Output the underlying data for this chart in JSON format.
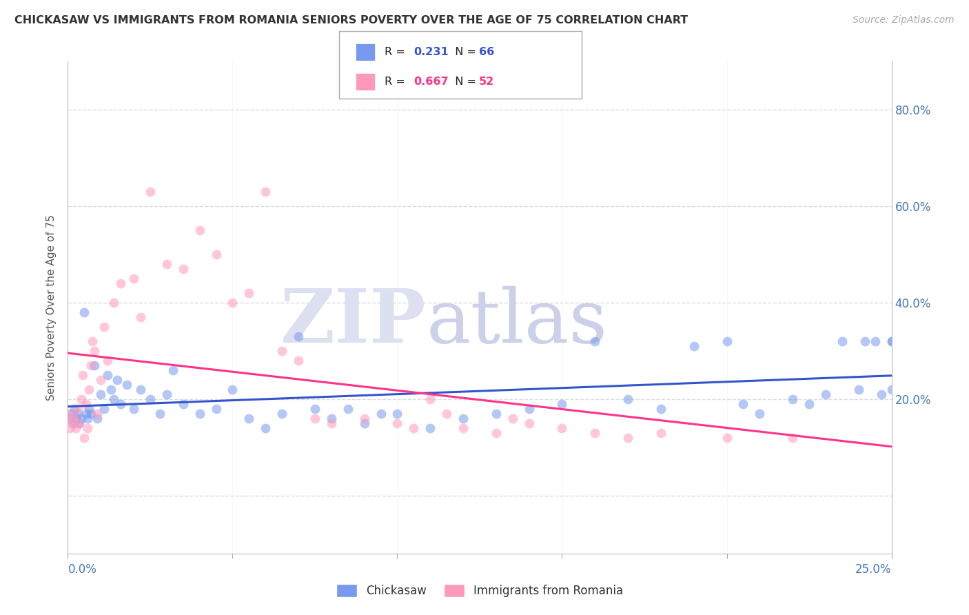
{
  "title": "CHICKASAW VS IMMIGRANTS FROM ROMANIA SENIORS POVERTY OVER THE AGE OF 75 CORRELATION CHART",
  "source": "Source: ZipAtlas.com",
  "ylabel": "Seniors Poverty Over the Age of 75",
  "legend_chickasaw": "Chickasaw",
  "legend_romania": "Immigrants from Romania",
  "R_chickasaw": "0.231",
  "N_chickasaw": "66",
  "R_romania": "0.667",
  "N_romania": "52",
  "xlim": [
    0.0,
    25.0
  ],
  "ylim_low": -12.0,
  "ylim_high": 90.0,
  "ytick_vals": [
    0,
    20,
    40,
    60,
    80
  ],
  "ytick_labels_right": [
    "",
    "20.0%",
    "40.0%",
    "60.0%",
    "80.0%"
  ],
  "xtick_vals": [
    0,
    5,
    10,
    15,
    20,
    25
  ],
  "blue_scatter_color": "#7799ee",
  "pink_scatter_color": "#ff99bb",
  "blue_line_color": "#3355cc",
  "pink_line_color": "#ff3388",
  "axis_label_color": "#4477bb",
  "title_color": "#333333",
  "source_color": "#aaaaaa",
  "ylabel_color": "#555555",
  "grid_color": "#cccccc",
  "watermark_zip_color": "#dde0f0",
  "watermark_atlas_color": "#ccd0e8",
  "background_color": "#ffffff",
  "chickasaw_x": [
    0.05,
    0.1,
    0.15,
    0.2,
    0.25,
    0.3,
    0.35,
    0.4,
    0.5,
    0.55,
    0.6,
    0.65,
    0.7,
    0.8,
    0.9,
    1.0,
    1.1,
    1.2,
    1.3,
    1.4,
    1.5,
    1.6,
    1.8,
    2.0,
    2.2,
    2.5,
    2.8,
    3.0,
    3.2,
    3.5,
    4.0,
    4.5,
    5.0,
    5.5,
    6.0,
    6.5,
    7.0,
    7.5,
    8.0,
    8.5,
    9.0,
    9.5,
    10.0,
    11.0,
    12.0,
    13.0,
    14.0,
    15.0,
    16.0,
    17.0,
    18.0,
    19.0,
    20.0,
    20.5,
    21.0,
    22.0,
    22.5,
    23.0,
    23.5,
    24.0,
    24.2,
    24.5,
    24.7,
    25.0,
    25.0,
    25.0
  ],
  "chickasaw_y": [
    16.0,
    17.0,
    15.0,
    18.0,
    16.0,
    17.0,
    15.0,
    16.0,
    38.0,
    17.0,
    16.0,
    18.0,
    17.0,
    27.0,
    16.0,
    21.0,
    18.0,
    25.0,
    22.0,
    20.0,
    24.0,
    19.0,
    23.0,
    18.0,
    22.0,
    20.0,
    17.0,
    21.0,
    26.0,
    19.0,
    17.0,
    18.0,
    22.0,
    16.0,
    14.0,
    17.0,
    33.0,
    18.0,
    16.0,
    18.0,
    15.0,
    17.0,
    17.0,
    14.0,
    16.0,
    17.0,
    18.0,
    19.0,
    32.0,
    20.0,
    18.0,
    31.0,
    32.0,
    19.0,
    17.0,
    20.0,
    19.0,
    21.0,
    32.0,
    22.0,
    32.0,
    32.0,
    21.0,
    22.0,
    32.0,
    32.0
  ],
  "romania_x": [
    0.0,
    0.05,
    0.1,
    0.15,
    0.2,
    0.25,
    0.3,
    0.35,
    0.4,
    0.45,
    0.5,
    0.55,
    0.6,
    0.65,
    0.7,
    0.75,
    0.8,
    0.9,
    1.0,
    1.1,
    1.2,
    1.4,
    1.6,
    2.0,
    2.2,
    2.5,
    3.0,
    3.5,
    4.0,
    4.5,
    5.0,
    5.5,
    6.0,
    6.5,
    7.0,
    7.5,
    8.0,
    9.0,
    10.0,
    10.5,
    11.0,
    11.5,
    12.0,
    13.0,
    13.5,
    14.0,
    15.0,
    16.0,
    17.0,
    18.0,
    20.0,
    22.0
  ],
  "romania_y": [
    16.0,
    14.0,
    17.0,
    15.0,
    16.0,
    14.0,
    18.0,
    15.0,
    20.0,
    25.0,
    12.0,
    19.0,
    14.0,
    22.0,
    27.0,
    32.0,
    30.0,
    17.0,
    24.0,
    35.0,
    28.0,
    40.0,
    44.0,
    45.0,
    37.0,
    63.0,
    48.0,
    47.0,
    55.0,
    50.0,
    40.0,
    42.0,
    63.0,
    30.0,
    28.0,
    16.0,
    15.0,
    16.0,
    15.0,
    14.0,
    20.0,
    17.0,
    14.0,
    13.0,
    16.0,
    15.0,
    14.0,
    13.0,
    12.0,
    13.0,
    12.0,
    12.0
  ]
}
